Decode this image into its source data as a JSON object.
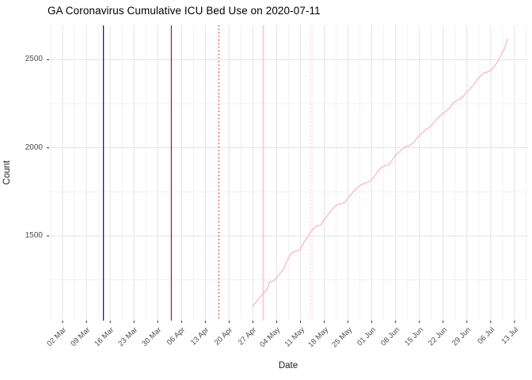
{
  "title": "GA Coronavirus Cumulative ICU Bed Use on 2020-07-11",
  "colors": {
    "background": "#ffffff",
    "grid_major": "#e4e4e4",
    "grid_minor": "#f1f1f1",
    "tick_mark": "#333333",
    "tick_label": "#4d4d4d",
    "axis_title": "#1a1a1a",
    "series_line": "#ffafbe",
    "vline_blue": "#0000cd",
    "vline_red": "#dd0000",
    "vline_pink": "#ffb6c1"
  },
  "chart_data": {
    "type": "line",
    "title": "GA Coronavirus Cumulative ICU Bed Use on 2020-07-11",
    "xlabel": "Date",
    "ylabel": "Count",
    "xlim": [
      "2020-02-27",
      "2020-07-17"
    ],
    "ylim": [
      1019,
      2695
    ],
    "grid": true,
    "legend_position": "none",
    "x_major_ticks": [
      {
        "date": "2020-03-02",
        "label": "02 Mar"
      },
      {
        "date": "2020-03-09",
        "label": "09 Mar"
      },
      {
        "date": "2020-03-16",
        "label": "16 Mar"
      },
      {
        "date": "2020-03-23",
        "label": "23 Mar"
      },
      {
        "date": "2020-03-30",
        "label": "30 Mar"
      },
      {
        "date": "2020-04-06",
        "label": "06 Apr"
      },
      {
        "date": "2020-04-13",
        "label": "13 Apr"
      },
      {
        "date": "2020-04-20",
        "label": "20 Apr"
      },
      {
        "date": "2020-04-27",
        "label": "27 Apr"
      },
      {
        "date": "2020-05-04",
        "label": "04 May"
      },
      {
        "date": "2020-05-11",
        "label": "11 May"
      },
      {
        "date": "2020-05-18",
        "label": "18 May"
      },
      {
        "date": "2020-05-25",
        "label": "25 May"
      },
      {
        "date": "2020-06-01",
        "label": "01 Jun"
      },
      {
        "date": "2020-06-08",
        "label": "08 Jun"
      },
      {
        "date": "2020-06-15",
        "label": "15 Jun"
      },
      {
        "date": "2020-06-22",
        "label": "22 Jun"
      },
      {
        "date": "2020-06-29",
        "label": "29 Jun"
      },
      {
        "date": "2020-07-06",
        "label": "06 Jul"
      },
      {
        "date": "2020-07-13",
        "label": "13 Jul"
      }
    ],
    "y_major_ticks": [
      {
        "value": 1500,
        "label": "1500"
      },
      {
        "value": 2000,
        "label": "2000"
      },
      {
        "value": 2500,
        "label": "2500"
      }
    ],
    "y_minor_values": [
      1250,
      1750,
      2250
    ],
    "vlines": [
      {
        "date": "2020-03-14",
        "color": "#0000cd",
        "style": "solid"
      },
      {
        "date": "2020-04-03",
        "color": "#dd0000",
        "style": "solid"
      },
      {
        "date": "2020-04-17",
        "color": "#dd0000",
        "style": "dotted"
      },
      {
        "date": "2020-04-30",
        "color": "#ffb6c1",
        "style": "solid"
      },
      {
        "date": "2020-05-14",
        "color": "#ffb6c1",
        "style": "dotted"
      }
    ],
    "series": [
      {
        "name": "cumulative-icu-bed-use",
        "color": "#ffafbe",
        "points": [
          [
            "2020-04-27",
            1100
          ],
          [
            "2020-04-28",
            1127
          ],
          [
            "2020-04-29",
            1149
          ],
          [
            "2020-04-30",
            1172
          ],
          [
            "2020-05-01",
            1190
          ],
          [
            "2020-05-02",
            1239
          ],
          [
            "2020-05-03",
            1243
          ],
          [
            "2020-05-04",
            1261
          ],
          [
            "2020-05-05",
            1288
          ],
          [
            "2020-05-06",
            1311
          ],
          [
            "2020-05-07",
            1356
          ],
          [
            "2020-05-08",
            1392
          ],
          [
            "2020-05-09",
            1410
          ],
          [
            "2020-05-10",
            1414
          ],
          [
            "2020-05-11",
            1423
          ],
          [
            "2020-05-12",
            1463
          ],
          [
            "2020-05-13",
            1490
          ],
          [
            "2020-05-14",
            1522
          ],
          [
            "2020-05-15",
            1544
          ],
          [
            "2020-05-16",
            1558
          ],
          [
            "2020-05-17",
            1562
          ],
          [
            "2020-05-18",
            1594
          ],
          [
            "2020-05-19",
            1616
          ],
          [
            "2020-05-20",
            1643
          ],
          [
            "2020-05-21",
            1665
          ],
          [
            "2020-05-22",
            1679
          ],
          [
            "2020-05-23",
            1683
          ],
          [
            "2020-05-24",
            1688
          ],
          [
            "2020-05-25",
            1715
          ],
          [
            "2020-05-26",
            1737
          ],
          [
            "2020-05-27",
            1760
          ],
          [
            "2020-05-28",
            1778
          ],
          [
            "2020-05-29",
            1791
          ],
          [
            "2020-05-30",
            1800
          ],
          [
            "2020-05-31",
            1805
          ],
          [
            "2020-06-01",
            1818
          ],
          [
            "2020-06-02",
            1845
          ],
          [
            "2020-06-03",
            1872
          ],
          [
            "2020-06-04",
            1890
          ],
          [
            "2020-06-05",
            1899
          ],
          [
            "2020-06-06",
            1903
          ],
          [
            "2020-06-07",
            1930
          ],
          [
            "2020-06-08",
            1957
          ],
          [
            "2020-06-09",
            1975
          ],
          [
            "2020-06-10",
            1993
          ],
          [
            "2020-06-11",
            2007
          ],
          [
            "2020-06-12",
            2011
          ],
          [
            "2020-06-13",
            2025
          ],
          [
            "2020-06-14",
            2047
          ],
          [
            "2020-06-15",
            2070
          ],
          [
            "2020-06-16",
            2088
          ],
          [
            "2020-06-17",
            2106
          ],
          [
            "2020-06-18",
            2115
          ],
          [
            "2020-06-19",
            2137
          ],
          [
            "2020-06-20",
            2160
          ],
          [
            "2020-06-21",
            2178
          ],
          [
            "2020-06-22",
            2196
          ],
          [
            "2020-06-23",
            2210
          ],
          [
            "2020-06-24",
            2228
          ],
          [
            "2020-06-25",
            2255
          ],
          [
            "2020-06-26",
            2268
          ],
          [
            "2020-06-27",
            2277
          ],
          [
            "2020-06-28",
            2295
          ],
          [
            "2020-06-29",
            2318
          ],
          [
            "2020-06-30",
            2336
          ],
          [
            "2020-07-01",
            2358
          ],
          [
            "2020-07-02",
            2385
          ],
          [
            "2020-07-03",
            2407
          ],
          [
            "2020-07-04",
            2425
          ],
          [
            "2020-07-05",
            2430
          ],
          [
            "2020-07-06",
            2439
          ],
          [
            "2020-07-07",
            2461
          ],
          [
            "2020-07-08",
            2488
          ],
          [
            "2020-07-09",
            2524
          ],
          [
            "2020-07-10",
            2560
          ],
          [
            "2020-07-11",
            2620
          ]
        ]
      }
    ]
  }
}
